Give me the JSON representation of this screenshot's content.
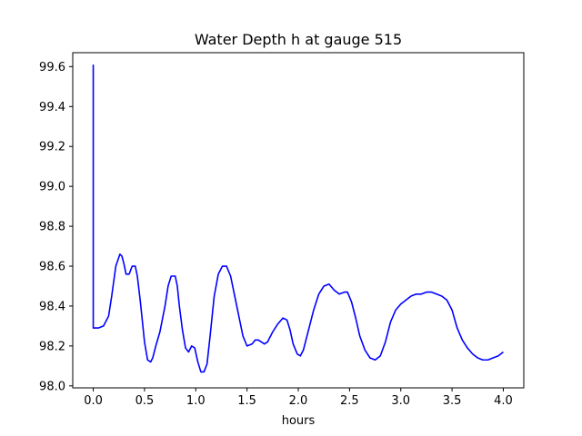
{
  "chart_data": {
    "type": "line",
    "title": "Water Depth h at gauge 515",
    "xlabel": "hours",
    "ylabel": "",
    "xlim": [
      -0.2,
      4.2
    ],
    "ylim": [
      97.99,
      99.67
    ],
    "xticks": [
      0.0,
      0.5,
      1.0,
      1.5,
      2.0,
      2.5,
      3.0,
      3.5,
      4.0
    ],
    "xtick_labels": [
      "0.0",
      "0.5",
      "1.0",
      "1.5",
      "2.0",
      "2.5",
      "3.0",
      "3.5",
      "4.0"
    ],
    "yticks": [
      98.0,
      98.2,
      98.4,
      98.6,
      98.8,
      99.0,
      99.2,
      99.4,
      99.6
    ],
    "ytick_labels": [
      "98.0",
      "98.2",
      "98.4",
      "98.6",
      "98.8",
      "99.0",
      "99.2",
      "99.4",
      "99.6"
    ],
    "grid": false,
    "series": [
      {
        "color": "#0000ff",
        "x": [
          0.0,
          0.0,
          0.02,
          0.05,
          0.1,
          0.15,
          0.18,
          0.22,
          0.26,
          0.28,
          0.3,
          0.32,
          0.35,
          0.38,
          0.41,
          0.43,
          0.46,
          0.5,
          0.53,
          0.56,
          0.58,
          0.61,
          0.65,
          0.7,
          0.73,
          0.76,
          0.8,
          0.82,
          0.84,
          0.87,
          0.9,
          0.93,
          0.96,
          0.99,
          1.02,
          1.05,
          1.08,
          1.11,
          1.14,
          1.18,
          1.22,
          1.26,
          1.3,
          1.34,
          1.38,
          1.42,
          1.46,
          1.5,
          1.55,
          1.58,
          1.61,
          1.64,
          1.67,
          1.7,
          1.75,
          1.8,
          1.85,
          1.89,
          1.92,
          1.95,
          1.99,
          2.02,
          2.05,
          2.1,
          2.15,
          2.2,
          2.25,
          2.3,
          2.35,
          2.4,
          2.45,
          2.48,
          2.52,
          2.56,
          2.6,
          2.65,
          2.7,
          2.75,
          2.8,
          2.85,
          2.9,
          2.95,
          3.0,
          3.05,
          3.1,
          3.15,
          3.2,
          3.25,
          3.3,
          3.35,
          3.4,
          3.45,
          3.5,
          3.55,
          3.6,
          3.65,
          3.7,
          3.75,
          3.8,
          3.85,
          3.9,
          3.95,
          4.0
        ],
        "y": [
          99.61,
          98.29,
          98.29,
          98.29,
          98.3,
          98.35,
          98.45,
          98.6,
          98.66,
          98.65,
          98.61,
          98.56,
          98.56,
          98.6,
          98.6,
          98.55,
          98.42,
          98.22,
          98.13,
          98.12,
          98.14,
          98.2,
          98.27,
          98.4,
          98.5,
          98.55,
          98.55,
          98.5,
          98.4,
          98.28,
          98.19,
          98.17,
          98.2,
          98.19,
          98.12,
          98.07,
          98.07,
          98.11,
          98.25,
          98.45,
          98.56,
          98.6,
          98.6,
          98.55,
          98.45,
          98.35,
          98.25,
          98.2,
          98.21,
          98.23,
          98.23,
          98.22,
          98.21,
          98.22,
          98.27,
          98.31,
          98.34,
          98.33,
          98.28,
          98.21,
          98.16,
          98.15,
          98.18,
          98.28,
          98.38,
          98.46,
          98.5,
          98.51,
          98.48,
          98.46,
          98.47,
          98.47,
          98.42,
          98.34,
          98.25,
          98.18,
          98.14,
          98.13,
          98.15,
          98.22,
          98.32,
          98.38,
          98.41,
          98.43,
          98.45,
          98.46,
          98.46,
          98.47,
          98.47,
          98.46,
          98.45,
          98.43,
          98.38,
          98.29,
          98.23,
          98.19,
          98.16,
          98.14,
          98.13,
          98.13,
          98.14,
          98.15,
          98.17
        ]
      }
    ]
  }
}
